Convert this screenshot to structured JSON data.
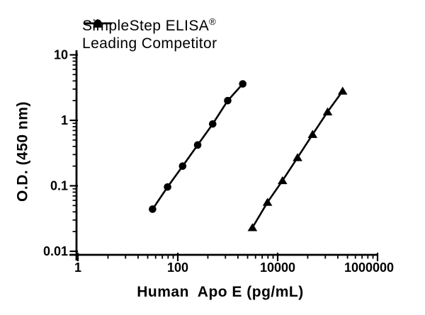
{
  "figure": {
    "background": "#ffffff",
    "ink": "#000000"
  },
  "legend": {
    "position": "top-left",
    "items": [
      {
        "label": "SimpleStep ELISA",
        "suffix": "®",
        "marker": "circle"
      },
      {
        "label": "Leading Competitor",
        "suffix": "",
        "marker": "triangle"
      }
    ]
  },
  "chart_data": {
    "type": "line",
    "x_scale": "log10",
    "y_scale": "log10",
    "title": "",
    "xlabel": "Human  Apo E (pg/mL)",
    "ylabel": "O.D. (450 nm)",
    "xlim": [
      1,
      1000000
    ],
    "ylim": [
      0.01,
      10
    ],
    "grid": false,
    "x_ticks": [
      {
        "value": 1,
        "label": "1"
      },
      {
        "value": 100,
        "label": "100"
      },
      {
        "value": 10000,
        "label": "10000"
      },
      {
        "value": 1000000,
        "label": "1000000"
      }
    ],
    "y_ticks": [
      {
        "value": 0.01,
        "label": "0.01"
      },
      {
        "value": 0.1,
        "label": "0.1"
      },
      {
        "value": 1,
        "label": "1"
      },
      {
        "value": 10,
        "label": "10"
      }
    ],
    "series": [
      {
        "name": "SimpleStep ELISA®",
        "marker": "circle",
        "x": [
          31.25,
          62.5,
          125,
          250,
          500,
          1000,
          2000
        ],
        "y": [
          0.044,
          0.096,
          0.2,
          0.42,
          0.88,
          2.0,
          3.6
        ]
      },
      {
        "name": "Leading Competitor",
        "marker": "triangle",
        "x": [
          3125,
          6250,
          12500,
          25000,
          50000,
          100000,
          200000
        ],
        "y": [
          0.023,
          0.056,
          0.12,
          0.27,
          0.61,
          1.35,
          2.8
        ]
      }
    ]
  }
}
